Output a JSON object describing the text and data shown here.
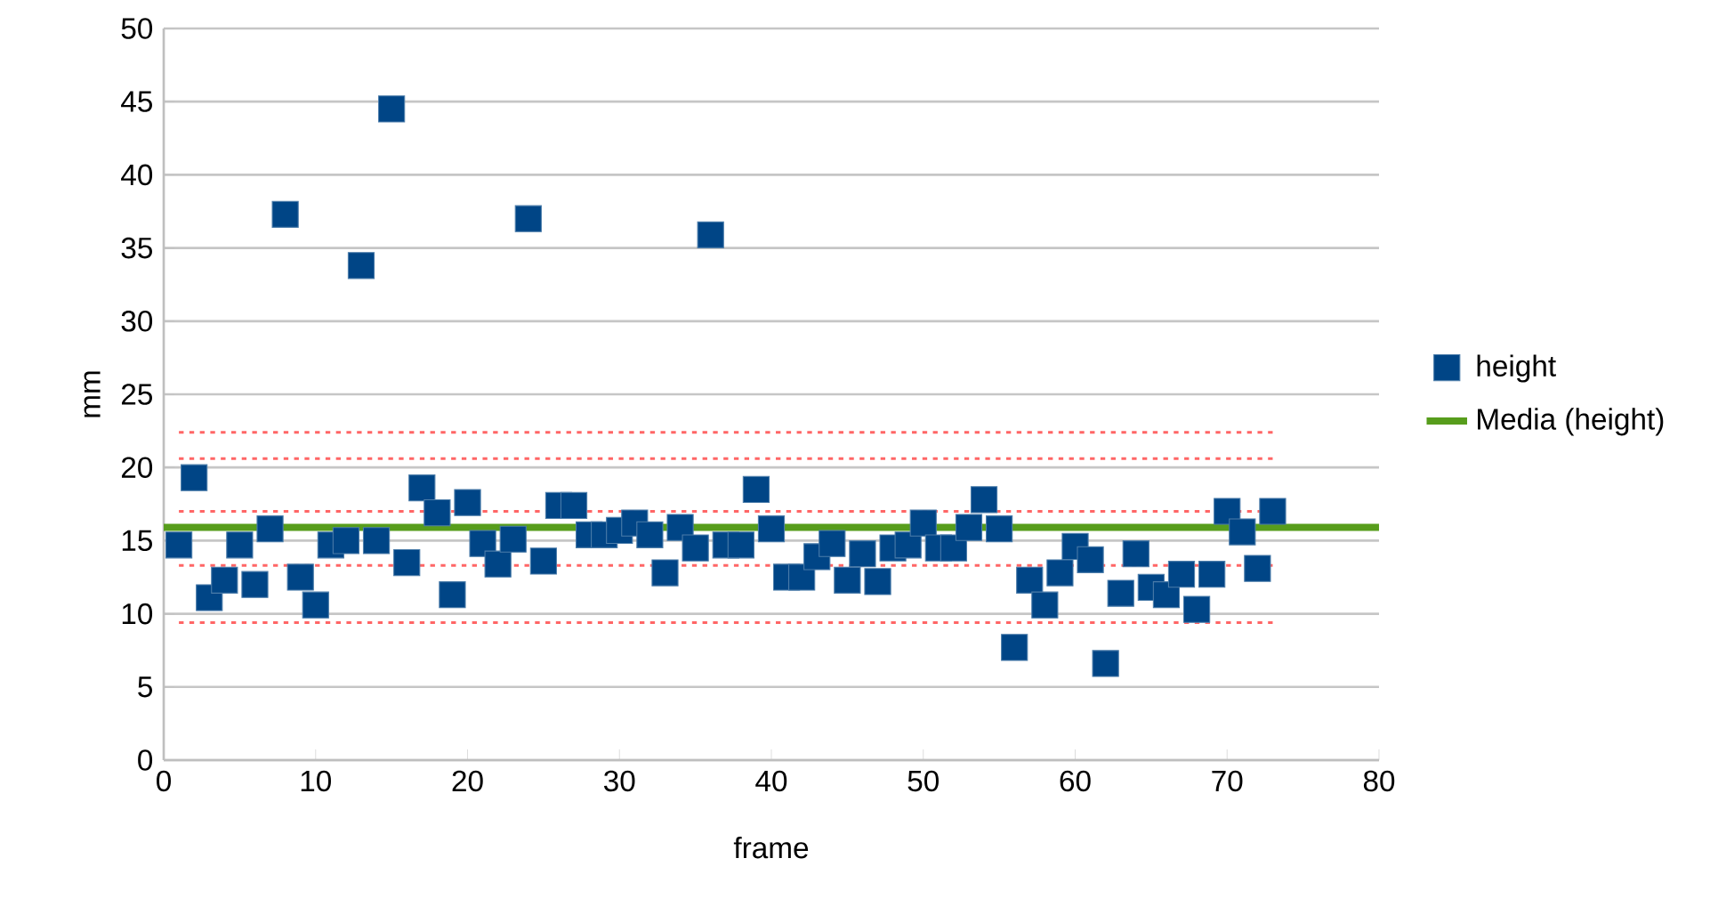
{
  "chart_data": {
    "type": "scatter",
    "xlabel": "frame",
    "ylabel": "mm",
    "xlim": [
      0,
      80
    ],
    "xticks": [
      0,
      10,
      20,
      30,
      40,
      50,
      60,
      70,
      80
    ],
    "ylim": [
      0,
      50
    ],
    "yticks": [
      0,
      5,
      10,
      15,
      20,
      25,
      30,
      35,
      40,
      45,
      50
    ],
    "grid": "y",
    "legend": "right",
    "series": [
      {
        "name": "height",
        "marker": "square",
        "color": "#004586",
        "x": [
          1,
          2,
          3,
          4,
          5,
          6,
          7,
          8,
          9,
          10,
          11,
          12,
          13,
          14,
          15,
          16,
          17,
          18,
          19,
          20,
          21,
          22,
          23,
          24,
          25,
          26,
          27,
          28,
          29,
          30,
          31,
          32,
          33,
          34,
          35,
          36,
          37,
          38,
          39,
          40,
          41,
          42,
          43,
          44,
          45,
          46,
          47,
          48,
          49,
          50,
          51,
          52,
          53,
          54,
          55,
          56,
          57,
          58,
          59,
          60,
          61,
          62,
          63,
          64,
          65,
          66,
          67,
          68,
          69,
          70,
          71,
          72,
          73
        ],
        "values": [
          14.7,
          19.3,
          11.1,
          12.3,
          14.7,
          12.0,
          15.8,
          37.3,
          12.5,
          10.6,
          14.7,
          15.0,
          33.8,
          15.0,
          44.5,
          13.5,
          18.6,
          16.9,
          11.3,
          17.6,
          14.8,
          13.4,
          15.1,
          37.0,
          13.6,
          17.4,
          17.4,
          15.4,
          15.4,
          15.7,
          16.2,
          15.4,
          12.8,
          15.9,
          14.5,
          35.9,
          14.7,
          14.7,
          18.5,
          15.8,
          12.5,
          12.5,
          13.9,
          14.8,
          12.3,
          14.1,
          12.2,
          14.5,
          14.7,
          16.2,
          14.5,
          14.5,
          15.9,
          17.8,
          15.8,
          7.7,
          12.3,
          10.6,
          12.8,
          14.6,
          13.7,
          6.6,
          11.4,
          14.1,
          11.8,
          11.3,
          12.7,
          10.3,
          12.7,
          17.0,
          15.6,
          13.1,
          17.0
        ]
      },
      {
        "name": "Media (height)",
        "type": "line",
        "color": "#579d1c",
        "line_style": "solid",
        "x": [
          0,
          80
        ],
        "values": [
          15.9,
          15.9
        ]
      },
      {
        "type": "line",
        "color": "#ff6666",
        "line_style": "dotted",
        "x": [
          1,
          73
        ],
        "values": [
          22.4,
          22.4
        ]
      },
      {
        "type": "line",
        "color": "#ff6666",
        "line_style": "dotted",
        "x": [
          1,
          73
        ],
        "values": [
          20.6,
          20.6
        ]
      },
      {
        "type": "line",
        "color": "#ff6666",
        "line_style": "dotted",
        "x": [
          1,
          73
        ],
        "values": [
          17.0,
          17.0
        ]
      },
      {
        "type": "line",
        "color": "#ff6666",
        "line_style": "dotted",
        "x": [
          1,
          73
        ],
        "values": [
          13.3,
          13.3
        ]
      },
      {
        "type": "line",
        "color": "#ff6666",
        "line_style": "dotted",
        "x": [
          1,
          73
        ],
        "values": [
          9.4,
          9.4
        ]
      }
    ]
  }
}
